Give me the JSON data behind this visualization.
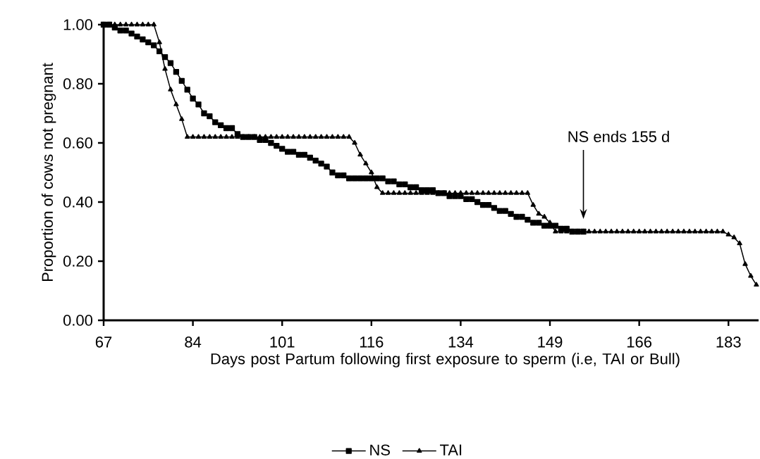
{
  "chart_data": {
    "type": "line",
    "ylabel": "Proportion of cows not pregnant",
    "xlabel": "Days post Partum following first exposure to sperm (i.e, TAI or Bull)",
    "categories": [
      "67",
      null,
      null,
      null,
      null,
      null,
      null,
      null,
      null,
      null,
      null,
      null,
      null,
      null,
      null,
      null,
      "84",
      null,
      null,
      null,
      null,
      null,
      null,
      null,
      null,
      null,
      null,
      null,
      null,
      null,
      null,
      null,
      "101",
      null,
      null,
      null,
      null,
      null,
      null,
      null,
      null,
      null,
      null,
      null,
      null,
      null,
      null,
      null,
      "116",
      null,
      null,
      null,
      null,
      null,
      null,
      null,
      null,
      null,
      null,
      null,
      null,
      null,
      null,
      null,
      "134",
      null,
      null,
      null,
      null,
      null,
      null,
      null,
      null,
      null,
      null,
      null,
      null,
      null,
      null,
      null,
      "149",
      null,
      null,
      null,
      null,
      null,
      null,
      null,
      null,
      null,
      null,
      null,
      null,
      null,
      null,
      null,
      "166",
      null,
      null,
      null,
      null,
      null,
      null,
      null,
      null,
      null,
      null,
      null,
      null,
      null,
      null,
      null,
      "183",
      null,
      null,
      null,
      null,
      null
    ],
    "series": [
      {
        "name": "NS",
        "color": "#000000",
        "marker": "square",
        "values": [
          1.0,
          1.0,
          0.99,
          0.98,
          0.98,
          0.97,
          0.96,
          0.95,
          0.94,
          0.93,
          0.91,
          0.89,
          0.87,
          0.84,
          0.81,
          0.78,
          0.75,
          0.73,
          0.7,
          0.69,
          0.67,
          0.66,
          0.65,
          0.65,
          0.63,
          0.62,
          0.62,
          0.62,
          0.61,
          0.61,
          0.6,
          0.59,
          0.58,
          0.57,
          0.57,
          0.56,
          0.56,
          0.55,
          0.54,
          0.53,
          0.52,
          0.5,
          0.49,
          0.49,
          0.48,
          0.48,
          0.48,
          0.48,
          0.48,
          0.48,
          0.48,
          0.47,
          0.47,
          0.46,
          0.46,
          0.45,
          0.45,
          0.44,
          0.44,
          0.44,
          0.43,
          0.43,
          0.42,
          0.42,
          0.42,
          0.41,
          0.41,
          0.4,
          0.39,
          0.39,
          0.38,
          0.37,
          0.37,
          0.36,
          0.35,
          0.35,
          0.34,
          0.33,
          0.33,
          0.32,
          0.32,
          0.32,
          0.31,
          0.31,
          0.3,
          0.3,
          0.3,
          null,
          null,
          null,
          null,
          null,
          null,
          null,
          null,
          null,
          null,
          null,
          null,
          null,
          null,
          null,
          null,
          null,
          null,
          null,
          null,
          null,
          null,
          null,
          null,
          null,
          null,
          null,
          null,
          null,
          null,
          null
        ]
      },
      {
        "name": "TAI",
        "color": "#000000",
        "marker": "triangle",
        "values": [
          1.0,
          1.0,
          1.0,
          1.0,
          1.0,
          1.0,
          1.0,
          1.0,
          1.0,
          1.0,
          0.94,
          0.85,
          0.78,
          0.73,
          0.68,
          0.62,
          0.62,
          0.62,
          0.62,
          0.62,
          0.62,
          0.62,
          0.62,
          0.62,
          0.62,
          0.62,
          0.62,
          0.62,
          0.62,
          0.62,
          0.62,
          0.62,
          0.62,
          0.62,
          0.62,
          0.62,
          0.62,
          0.62,
          0.62,
          0.62,
          0.62,
          0.62,
          0.62,
          0.62,
          0.62,
          0.6,
          0.56,
          0.53,
          0.5,
          0.45,
          0.43,
          0.43,
          0.43,
          0.43,
          0.43,
          0.43,
          0.43,
          0.43,
          0.43,
          0.43,
          0.43,
          0.43,
          0.43,
          0.43,
          0.43,
          0.43,
          0.43,
          0.43,
          0.43,
          0.43,
          0.43,
          0.43,
          0.43,
          0.43,
          0.43,
          0.43,
          0.43,
          0.39,
          0.36,
          0.35,
          0.33,
          0.3,
          0.3,
          0.3,
          0.3,
          0.3,
          0.3,
          0.3,
          0.3,
          0.3,
          0.3,
          0.3,
          0.3,
          0.3,
          0.3,
          0.3,
          0.3,
          0.3,
          0.3,
          0.3,
          0.3,
          0.3,
          0.3,
          0.3,
          0.3,
          0.3,
          0.3,
          0.3,
          0.3,
          0.3,
          0.3,
          0.3,
          0.29,
          0.28,
          0.26,
          0.19,
          0.15,
          0.12
        ]
      }
    ],
    "ylim": [
      0,
      1
    ],
    "yticks": [
      {
        "value": 0,
        "label": "0.00"
      },
      {
        "value": 0.2,
        "label": "0.20"
      },
      {
        "value": 0.4,
        "label": "0.40"
      },
      {
        "value": 0.6,
        "label": "0.60"
      },
      {
        "value": 0.8,
        "label": "0.80"
      },
      {
        "value": 1,
        "label": "1.00"
      }
    ],
    "legend": "bottom",
    "line_style": "solid",
    "annotations": [
      "NS ends 155 d"
    ]
  }
}
